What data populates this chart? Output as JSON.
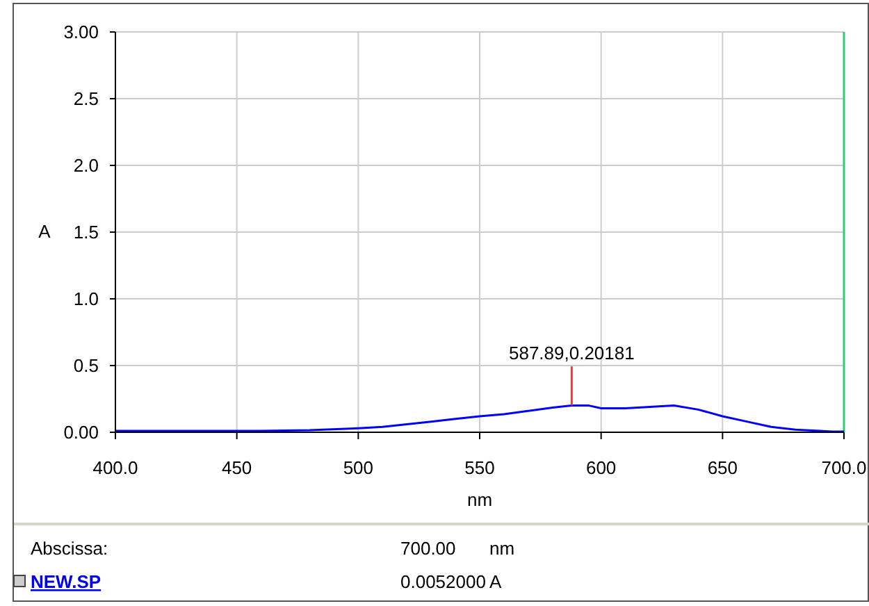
{
  "chart_data": {
    "type": "line",
    "xlabel": "nm",
    "ylabel": "A",
    "x": [
      400,
      420,
      440,
      460,
      480,
      500,
      510,
      520,
      530,
      540,
      550,
      560,
      570,
      580,
      587.89,
      595,
      600,
      610,
      620,
      630,
      640,
      650,
      660,
      670,
      680,
      690,
      695,
      700
    ],
    "series": [
      {
        "color": "#0000ff",
        "values": [
          0.01,
          0.01,
          0.01,
          0.01,
          0.015,
          0.03,
          0.04,
          0.06,
          0.08,
          0.1,
          0.12,
          0.135,
          0.16,
          0.185,
          0.2,
          0.2,
          0.18,
          0.18,
          0.19,
          0.2,
          0.17,
          0.12,
          0.08,
          0.04,
          0.02,
          0.01,
          0.005,
          0.005
        ]
      }
    ],
    "xlim": [
      400,
      700
    ],
    "ylim": [
      0,
      3
    ],
    "xticks": [
      {
        "value": 400,
        "label": "400.0"
      },
      450,
      500,
      550,
      600,
      650,
      {
        "value": 700,
        "label": "700.0"
      }
    ],
    "yticks": [
      {
        "value": 0,
        "label": "0.00"
      },
      0.5,
      {
        "value": 1,
        "label": "1.0"
      },
      1.5,
      {
        "value": 2,
        "label": "2.0"
      },
      2.5,
      {
        "value": 3,
        "label": "3.00"
      }
    ],
    "grid": true,
    "marker": "none",
    "line_style": "solid",
    "ref_lines": [
      {
        "axis": "x",
        "value": 700,
        "color": "#2ecc71"
      }
    ],
    "annotations": [
      {
        "text": "587.89,0.20181",
        "x": 587.89,
        "y": 0.20181
      },
      "Abscissa:",
      "700.00",
      "nm",
      "NEW.SP",
      "0.0052000",
      "A"
    ]
  }
}
